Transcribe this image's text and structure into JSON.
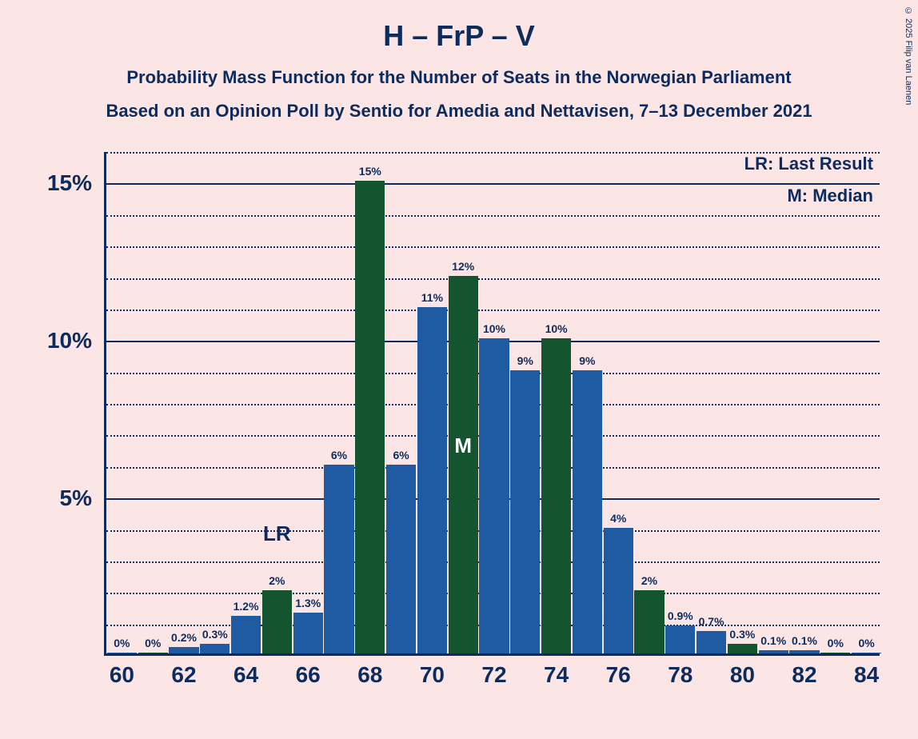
{
  "copyright": "© 2025 Filip van Laenen",
  "title": "H – FrP – V",
  "subtitle1": "Probability Mass Function for the Number of Seats in the Norwegian Parliament",
  "subtitle2": "Based on an Opinion Poll by Sentio for Amedia and Nettavisen, 7–13 December 2021",
  "legend": {
    "lr": "LR: Last Result",
    "m": "M: Median"
  },
  "chart": {
    "type": "bar",
    "background_color": "#fbe5e5",
    "axis_color": "#0d2b5c",
    "grid_solid_color": "#0d2b5c",
    "grid_dotted_color": "#0d2b5c",
    "bar_colors": {
      "blue": "#1f5ba3",
      "green": "#14542f"
    },
    "ylim": [
      0,
      16
    ],
    "y_major_ticks": [
      5,
      10,
      15
    ],
    "y_minor_step": 1,
    "x_labels": [
      60,
      62,
      64,
      66,
      68,
      70,
      72,
      74,
      76,
      78,
      80,
      82,
      84
    ],
    "x_offset_pct": 2.0,
    "x_spacing_pct": 8.0,
    "bar_width_pct": 3.85,
    "bars": [
      {
        "x": 60,
        "value": 0,
        "label": "0%",
        "color": "blue"
      },
      {
        "x": 61,
        "value": 0,
        "label": "0%",
        "color": "green"
      },
      {
        "x": 62,
        "value": 0.2,
        "label": "0.2%",
        "color": "blue"
      },
      {
        "x": 63,
        "value": 0.3,
        "label": "0.3%",
        "color": "blue"
      },
      {
        "x": 64,
        "value": 1.2,
        "label": "1.2%",
        "color": "blue"
      },
      {
        "x": 65,
        "value": 2,
        "label": "2%",
        "color": "green"
      },
      {
        "x": 66,
        "value": 1.3,
        "label": "1.3%",
        "color": "blue"
      },
      {
        "x": 67,
        "value": 6,
        "label": "6%",
        "color": "blue"
      },
      {
        "x": 68,
        "value": 15,
        "label": "15%",
        "color": "green"
      },
      {
        "x": 69,
        "value": 6,
        "label": "6%",
        "color": "blue"
      },
      {
        "x": 70,
        "value": 11,
        "label": "11%",
        "color": "blue"
      },
      {
        "x": 71,
        "value": 12,
        "label": "12%",
        "color": "green"
      },
      {
        "x": 72,
        "value": 10,
        "label": "10%",
        "color": "blue"
      },
      {
        "x": 73,
        "value": 9,
        "label": "9%",
        "color": "blue"
      },
      {
        "x": 74,
        "value": 10,
        "label": "10%",
        "color": "green"
      },
      {
        "x": 75,
        "value": 9,
        "label": "9%",
        "color": "blue"
      },
      {
        "x": 76,
        "value": 4,
        "label": "4%",
        "color": "blue"
      },
      {
        "x": 77,
        "value": 2,
        "label": "2%",
        "color": "green"
      },
      {
        "x": 78,
        "value": 0.9,
        "label": "0.9%",
        "color": "blue"
      },
      {
        "x": 79,
        "value": 0.7,
        "label": "0.7%",
        "color": "blue"
      },
      {
        "x": 80,
        "value": 0.3,
        "label": "0.3%",
        "color": "green"
      },
      {
        "x": 81,
        "value": 0.1,
        "label": "0.1%",
        "color": "blue"
      },
      {
        "x": 82,
        "value": 0.1,
        "label": "0.1%",
        "color": "blue"
      },
      {
        "x": 83,
        "value": 0,
        "label": "0%",
        "color": "green"
      },
      {
        "x": 84,
        "value": 0,
        "label": "0%",
        "color": "blue"
      }
    ],
    "annotations": {
      "lr": {
        "label": "LR",
        "x": 65,
        "above_value": 3.4
      },
      "m": {
        "label": "M",
        "x": 71,
        "inside": true,
        "at_value": 6.2
      }
    }
  }
}
